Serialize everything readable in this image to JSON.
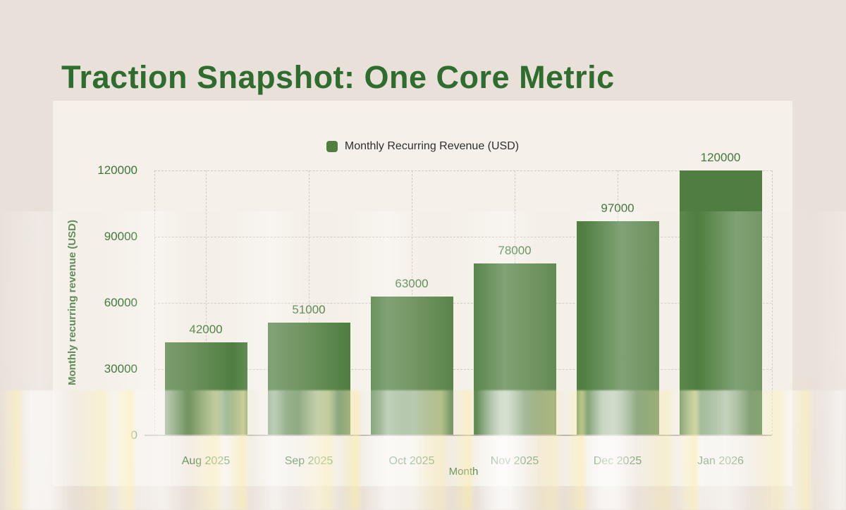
{
  "page": {
    "title": "Traction Snapshot: One Core Metric"
  },
  "chart_data": {
    "type": "bar",
    "title": "Traction Snapshot: One Core Metric",
    "categories": [
      "Aug 2025",
      "Sep 2025",
      "Oct 2025",
      "Nov 2025",
      "Dec 2025",
      "Jan 2026"
    ],
    "values": [
      42000,
      51000,
      63000,
      78000,
      97000,
      120000
    ],
    "series_name": "Monthly Recurring Revenue (USD)",
    "xlabel": "Month",
    "ylabel": "Monthly recurring revenue (USD)",
    "yticks": [
      0,
      30000,
      60000,
      90000,
      120000
    ],
    "ylim": [
      0,
      120000
    ],
    "legend_position": "top",
    "grid": true,
    "data_labels": true,
    "colors": {
      "bar": "#4f7e40",
      "value_label": "#41793a",
      "tick_label": "#3d7639",
      "title": "#2e6d2e",
      "legend_text": "#2f2f2f",
      "gridline": "#cfcac2",
      "axis_line": "#b2aea7",
      "background": "#e9e0d9",
      "card": "#f5f2ec"
    }
  }
}
